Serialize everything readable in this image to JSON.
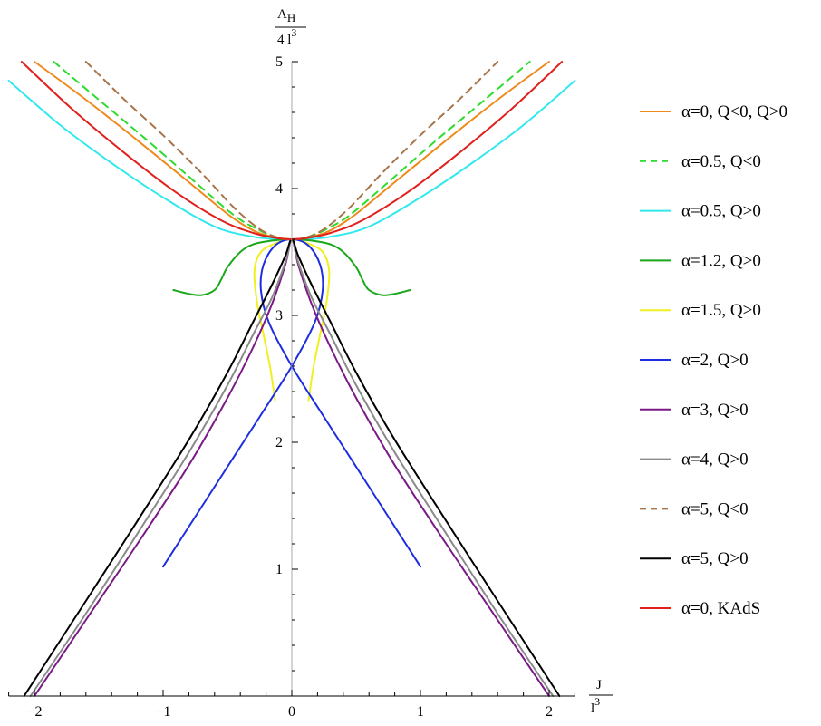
{
  "chart_data": {
    "type": "line",
    "xlabel": {
      "numerator": "J",
      "denominator": "l",
      "denominator_exp": "3"
    },
    "ylabel": {
      "numerator_main": "A",
      "numerator_sub": "H",
      "denominator": "4 l",
      "denominator_exp": "3"
    },
    "xlim": [
      -2.2,
      2.2
    ],
    "ylim": [
      0,
      5
    ],
    "x_ticks": [
      -2,
      -1,
      0,
      1,
      2
    ],
    "x_tick_labels": [
      "-2",
      "-1",
      "0",
      "1",
      "2"
    ],
    "y_ticks": [
      1,
      2,
      3,
      4,
      5
    ],
    "y_tick_labels": [
      "1",
      "2",
      "3",
      "4",
      "5"
    ],
    "grid": false,
    "legend_position": "right",
    "series": [
      {
        "name": "α=0, Q<0, Q>0",
        "color": "#ee8a1c",
        "dash": "solid",
        "x": [
          -2.0,
          -1.6,
          -1.2,
          -0.8,
          -0.5,
          -0.3,
          -0.15,
          0.0,
          0.15,
          0.3,
          0.5,
          0.8,
          1.2,
          1.6,
          2.0
        ],
        "y": [
          5.0,
          4.7,
          4.38,
          4.05,
          3.8,
          3.67,
          3.62,
          3.6,
          3.62,
          3.67,
          3.8,
          4.05,
          4.38,
          4.7,
          5.0
        ]
      },
      {
        "name": "α=0.5, Q<0",
        "color": "#2edb2e",
        "dash": "dashed",
        "x": [
          -1.85,
          -1.5,
          -1.1,
          -0.75,
          -0.45,
          -0.25,
          -0.1,
          0.0,
          0.1,
          0.25,
          0.45,
          0.75,
          1.1,
          1.5,
          1.85
        ],
        "y": [
          5.0,
          4.7,
          4.36,
          4.05,
          3.79,
          3.67,
          3.61,
          3.6,
          3.61,
          3.67,
          3.79,
          4.05,
          4.36,
          4.7,
          5.0
        ]
      },
      {
        "name": "α=0.5, Q>0",
        "color": "#30e8ee",
        "dash": "solid",
        "x": [
          -2.2,
          -1.8,
          -1.4,
          -1.0,
          -0.6,
          -0.3,
          -0.1,
          0.0,
          0.1,
          0.3,
          0.6,
          1.0,
          1.4,
          1.8,
          2.2
        ],
        "y": [
          4.85,
          4.5,
          4.2,
          3.93,
          3.7,
          3.62,
          3.6,
          3.6,
          3.6,
          3.62,
          3.7,
          3.93,
          4.2,
          4.5,
          4.85
        ]
      },
      {
        "name": "α=1.2, Q>0",
        "color": "#1aa81a",
        "dash": "solid",
        "x": [
          -0.92,
          -0.8,
          -0.7,
          -0.6,
          -0.55,
          -0.5,
          -0.4,
          -0.3,
          -0.15,
          0.0,
          0.15,
          0.3,
          0.4,
          0.5,
          0.55,
          0.6,
          0.7,
          0.8,
          0.92
        ],
        "y": [
          3.2,
          3.17,
          3.16,
          3.2,
          3.28,
          3.38,
          3.5,
          3.56,
          3.59,
          3.6,
          3.59,
          3.56,
          3.5,
          3.38,
          3.28,
          3.2,
          3.16,
          3.17,
          3.2
        ]
      },
      {
        "name": "α=1.5, Q>0",
        "color": "#f0f020",
        "dash": "solid",
        "x": [
          -0.13,
          -0.17,
          -0.22,
          -0.27,
          -0.29,
          -0.24,
          -0.12,
          0.0,
          0.12,
          0.24,
          0.29,
          0.27,
          0.22,
          0.17,
          0.13
        ],
        "y": [
          2.33,
          2.6,
          2.85,
          3.1,
          3.35,
          3.5,
          3.57,
          3.6,
          3.57,
          3.5,
          3.35,
          3.1,
          2.85,
          2.6,
          2.33
        ]
      },
      {
        "name": "α=2, Q>0",
        "color": "#1c2ee0",
        "dash": "solid",
        "x": [
          -1.0,
          -0.6,
          -0.25,
          0.0,
          0.18,
          0.24,
          0.22,
          0.13,
          0.0,
          -0.13,
          -0.22,
          -0.24,
          -0.18,
          0.0,
          0.25,
          0.6,
          1.0
        ],
        "y": [
          1.02,
          1.65,
          2.2,
          2.6,
          2.95,
          3.2,
          3.4,
          3.55,
          3.6,
          3.55,
          3.4,
          3.2,
          2.95,
          2.6,
          2.2,
          1.65,
          1.02
        ]
      },
      {
        "name": "α=3, Q>0",
        "color": "#7a1a86",
        "dash": "solid",
        "x": [
          -2.0,
          -1.6,
          -1.2,
          -0.8,
          -0.5,
          -0.3,
          -0.15,
          -0.05,
          0.0,
          0.05,
          0.15,
          0.3,
          0.5,
          0.8,
          1.2,
          1.6,
          2.0
        ],
        "y": [
          0.0,
          0.6,
          1.2,
          1.82,
          2.35,
          2.75,
          3.1,
          3.4,
          3.6,
          3.4,
          3.1,
          2.75,
          2.35,
          1.82,
          1.2,
          0.6,
          0.0
        ]
      },
      {
        "name": "α=4, Q>0",
        "color": "#8a8a8a",
        "dash": "solid",
        "x": [
          -2.03,
          -1.6,
          -1.2,
          -0.8,
          -0.5,
          -0.3,
          -0.15,
          -0.05,
          0.0,
          0.05,
          0.15,
          0.3,
          0.5,
          0.8,
          1.2,
          1.6,
          2.03
        ],
        "y": [
          0.0,
          0.65,
          1.28,
          1.92,
          2.45,
          2.85,
          3.15,
          3.42,
          3.6,
          3.42,
          3.15,
          2.85,
          2.45,
          1.92,
          1.28,
          0.65,
          0.0
        ]
      },
      {
        "name": "α=5, Q<0",
        "color": "#a8744a",
        "dash": "dashed",
        "x": [
          -1.6,
          -1.3,
          -1.0,
          -0.7,
          -0.45,
          -0.25,
          -0.1,
          0.0,
          0.1,
          0.25,
          0.45,
          0.7,
          1.0,
          1.3,
          1.6
        ],
        "y": [
          5.0,
          4.7,
          4.42,
          4.12,
          3.85,
          3.68,
          3.61,
          3.6,
          3.61,
          3.68,
          3.85,
          4.12,
          4.42,
          4.7,
          5.0
        ]
      },
      {
        "name": "α=5, Q>0",
        "color": "#000000",
        "dash": "solid",
        "x": [
          -2.08,
          -1.6,
          -1.2,
          -0.8,
          -0.5,
          -0.3,
          -0.15,
          -0.05,
          0.0,
          0.05,
          0.15,
          0.3,
          0.5,
          0.8,
          1.2,
          1.6,
          2.08
        ],
        "y": [
          0.0,
          0.75,
          1.38,
          2.02,
          2.55,
          2.95,
          3.25,
          3.47,
          3.6,
          3.47,
          3.25,
          2.95,
          2.55,
          2.02,
          1.38,
          0.75,
          0.0
        ]
      },
      {
        "name": "α=0, KAdS",
        "color": "#e0201c",
        "dash": "solid",
        "x": [
          -2.1,
          -1.7,
          -1.3,
          -0.9,
          -0.55,
          -0.3,
          -0.12,
          0.0,
          0.12,
          0.3,
          0.55,
          0.9,
          1.3,
          1.7,
          2.1
        ],
        "y": [
          5.0,
          4.62,
          4.28,
          3.97,
          3.75,
          3.65,
          3.61,
          3.6,
          3.61,
          3.65,
          3.75,
          3.97,
          4.28,
          4.62,
          5.0
        ]
      }
    ]
  }
}
